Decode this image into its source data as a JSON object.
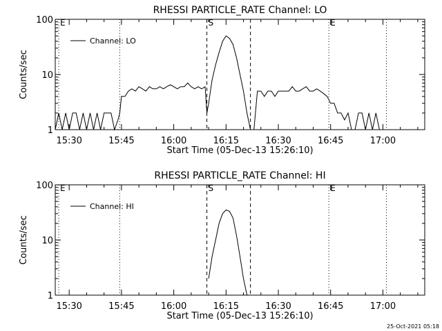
{
  "footer": {
    "timestamp": "25-Oct-2021 05:18"
  },
  "chart_data": [
    {
      "type": "line",
      "title": "RHESSI PARTICLE_RATE Channel: LO",
      "xlabel": "Start Time (05-Dec-13 15:26:10)",
      "ylabel": "Counts/sec",
      "yscale": "log",
      "ylim": [
        1,
        100
      ],
      "xlim": [
        "15:26",
        "17:12"
      ],
      "xticks": [
        "15:30",
        "15:45",
        "16:00",
        "16:15",
        "16:30",
        "16:45",
        "17:00"
      ],
      "yticks": [
        "1",
        "10",
        "100"
      ],
      "legend": {
        "label": "Channel: LO",
        "position": "top-left"
      },
      "markers": [
        {
          "time": "15:27",
          "label": "E",
          "style": "dotted"
        },
        {
          "time": "15:44.5",
          "label": "",
          "style": "dotted"
        },
        {
          "time": "16:09.5",
          "label": "S",
          "style": "dashed"
        },
        {
          "time": "16:22",
          "label": "",
          "style": "dashed"
        },
        {
          "time": "16:44.5",
          "label": "E",
          "style": "dotted"
        },
        {
          "time": "17:01",
          "label": "",
          "style": "dotted"
        }
      ],
      "series": [
        {
          "x": [
            "15:26",
            "15:27",
            "15:28",
            "15:29",
            "15:30",
            "15:31",
            "15:32",
            "15:33",
            "15:34",
            "15:35",
            "15:36",
            "15:37",
            "15:38",
            "15:39",
            "15:40",
            "15:41",
            "15:42",
            "15:43",
            "15:44",
            "15:44.5",
            "15:45",
            "15:46",
            "15:47",
            "15:48",
            "15:49",
            "15:50",
            "15:51",
            "15:52",
            "15:53",
            "15:54",
            "15:55",
            "15:56",
            "15:57",
            "15:58",
            "15:59",
            "16:00",
            "16:01",
            "16:02",
            "16:03",
            "16:04",
            "16:05",
            "16:06",
            "16:07",
            "16:08",
            "16:09",
            "16:09.5",
            "16:10",
            "16:11",
            "16:12",
            "16:13",
            "16:14",
            "16:15",
            "16:16",
            "16:17",
            "16:18",
            "16:19",
            "16:20",
            "16:21",
            "16:22",
            "16:23",
            "16:24",
            "16:25",
            "16:26",
            "16:27",
            "16:28",
            "16:29",
            "16:30",
            "16:31",
            "16:32",
            "16:33",
            "16:34",
            "16:35",
            "16:36",
            "16:37",
            "16:38",
            "16:39",
            "16:40",
            "16:41",
            "16:42",
            "16:43",
            "16:44",
            "16:45",
            "16:46",
            "16:47",
            "16:48",
            "16:49",
            "16:50",
            "16:51",
            "16:52",
            "16:53",
            "16:54",
            "16:55",
            "16:56",
            "16:57",
            "16:58",
            "16:59",
            "17:00",
            "17:01"
          ],
          "y": [
            1,
            2,
            1,
            2,
            1,
            2,
            2,
            1,
            2,
            1,
            2,
            1,
            2,
            1,
            2,
            2,
            2,
            1,
            1.5,
            2,
            4,
            4,
            5,
            5.5,
            5,
            6,
            5.5,
            5,
            6,
            5.5,
            5.5,
            6,
            5.5,
            6,
            6.5,
            6,
            5.5,
            6,
            6,
            7,
            6,
            5.5,
            6,
            5.5,
            6,
            2,
            3,
            8,
            15,
            25,
            40,
            50,
            45,
            35,
            20,
            10,
            5,
            2,
            1,
            1,
            5,
            5,
            4,
            5,
            5,
            4,
            5,
            5,
            5,
            5,
            6,
            5,
            5,
            5.5,
            6,
            5,
            5,
            5.5,
            5,
            4.5,
            4,
            3,
            3,
            2,
            2,
            1.5,
            2,
            1,
            1,
            2,
            2,
            1,
            2,
            1,
            2,
            1,
            1,
            1
          ]
        }
      ]
    },
    {
      "type": "line",
      "title": "RHESSI PARTICLE_RATE Channel: HI",
      "xlabel": "Start Time (05-Dec-13 15:26:10)",
      "ylabel": "Counts/sec",
      "yscale": "log",
      "ylim": [
        1,
        100
      ],
      "xlim": [
        "15:26",
        "17:12"
      ],
      "xticks": [
        "15:30",
        "15:45",
        "16:00",
        "16:15",
        "16:30",
        "16:45",
        "17:00"
      ],
      "yticks": [
        "1",
        "10",
        "100"
      ],
      "legend": {
        "label": "Channel: HI",
        "position": "top-left"
      },
      "markers": [
        {
          "time": "15:27",
          "label": "E",
          "style": "dotted"
        },
        {
          "time": "15:44.5",
          "label": "",
          "style": "dotted"
        },
        {
          "time": "16:09.5",
          "label": "S",
          "style": "dashed"
        },
        {
          "time": "16:22",
          "label": "",
          "style": "dashed"
        },
        {
          "time": "16:44.5",
          "label": "E",
          "style": "dotted"
        },
        {
          "time": "17:01",
          "label": "",
          "style": "dotted"
        }
      ],
      "series": [
        {
          "x": [
            "16:10",
            "16:11",
            "16:12",
            "16:13",
            "16:14",
            "16:15",
            "16:16",
            "16:17",
            "16:18",
            "16:19",
            "16:20",
            "16:21"
          ],
          "y": [
            2,
            5,
            10,
            20,
            30,
            35,
            33,
            25,
            12,
            5,
            2,
            1
          ]
        }
      ]
    }
  ]
}
